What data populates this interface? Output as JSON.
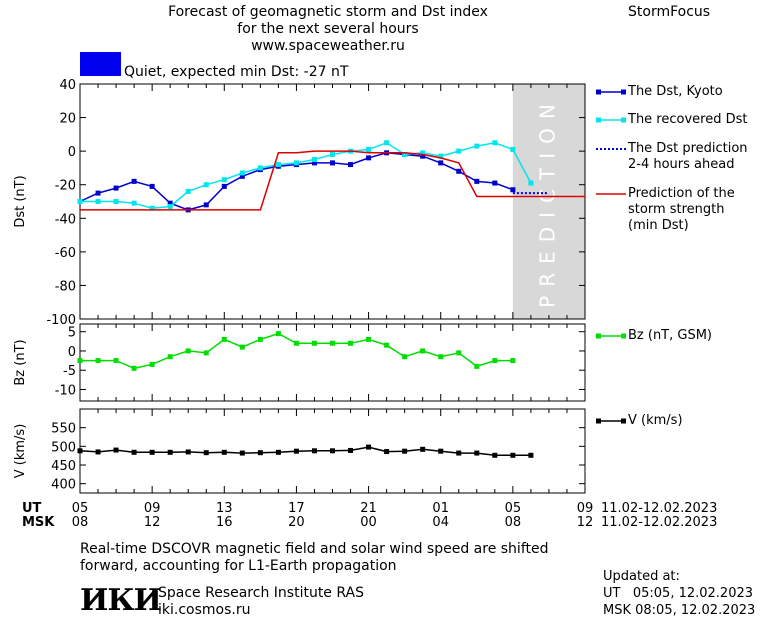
{
  "header": {
    "title_line1": "Forecast of geomagnetic storm and Dst index",
    "title_line2": "for the next several hours",
    "title_line3": "www.spaceweather.ru",
    "brand": "StormFocus",
    "status_text": "Quiet, expected min Dst: -27 nT",
    "status_color": "#0000ee"
  },
  "time_axis": {
    "ut_label": "UT",
    "msk_label": "MSK",
    "ut_ticks": [
      "05",
      "09",
      "13",
      "17",
      "21",
      "01",
      "05",
      "09"
    ],
    "msk_ticks": [
      "08",
      "12",
      "16",
      "20",
      "00",
      "04",
      "08",
      "12"
    ],
    "date_range_ut": "11.02-12.02.2023",
    "date_range_msk": "11.02-12.02.2023"
  },
  "chart_data": [
    {
      "type": "line",
      "ylabel": "Dst (nT)",
      "ylim": [
        -100,
        40
      ],
      "yticks": [
        "40",
        "20",
        "0",
        "-20",
        "-40",
        "-60",
        "-80",
        "-100"
      ],
      "prediction_label": "PREDICTION",
      "prediction_band_hours": [
        5,
        9
      ],
      "x_hours": [
        0,
        1,
        2,
        3,
        4,
        5,
        6,
        7,
        8,
        9,
        10,
        11,
        12,
        13,
        14,
        15,
        16,
        17,
        18,
        19,
        20,
        21,
        22,
        23,
        24,
        25
      ],
      "series": [
        {
          "name": "The Dst, Kyoto",
          "color": "#0000cc",
          "values": [
            -30,
            -25,
            -22,
            -18,
            -21,
            -31,
            -35,
            -32,
            -21,
            -15,
            -11,
            -9,
            -8,
            -7,
            -7,
            -8,
            -4,
            -1,
            -2,
            -3,
            -7,
            -12,
            -18,
            -19,
            -23,
            null
          ]
        },
        {
          "name": "The recovered Dst",
          "color": "#00e5ee",
          "values": [
            -30,
            -30,
            -30,
            -31,
            -34,
            -33,
            -24,
            -20,
            -17,
            -13,
            -10,
            -8,
            -7,
            -5,
            -2,
            0,
            1,
            5,
            -2,
            -1,
            -3,
            0,
            3,
            5,
            1,
            -19
          ]
        },
        {
          "name": "The Dst prediction\n2-4 hours ahead",
          "color": "#0000ee",
          "style": "dotted",
          "x": [
            24,
            25,
            26
          ],
          "values": [
            -25,
            -25,
            -25
          ]
        },
        {
          "name": "Prediction of the\nstorm strength\n(min Dst)",
          "color": "#dd0000",
          "x": [
            0,
            10,
            11,
            12,
            13,
            14,
            15,
            16,
            17,
            18,
            19,
            20,
            21,
            22,
            23,
            24,
            25,
            26,
            27,
            28
          ],
          "values": [
            -35,
            -35,
            -1,
            -1,
            0,
            0,
            0,
            -1,
            -1,
            -1,
            -2,
            -4,
            -7,
            -27,
            -27,
            -27,
            -27,
            -27,
            -27,
            -27
          ]
        }
      ]
    },
    {
      "type": "line",
      "ylabel": "Bz (nT)",
      "ylim": [
        -13,
        7
      ],
      "yticks": [
        "5",
        "0",
        "-5",
        "-10"
      ],
      "x_hours": [
        0,
        1,
        2,
        3,
        4,
        5,
        6,
        7,
        8,
        9,
        10,
        11,
        12,
        13,
        14,
        15,
        16,
        17,
        18,
        19,
        20,
        21,
        22,
        23,
        24,
        25
      ],
      "series": [
        {
          "name": "Bz (nT, GSM)",
          "color": "#00dd00",
          "values": [
            -2.5,
            -2.5,
            -2.5,
            -4.5,
            -3.5,
            -1.5,
            0,
            -0.5,
            3,
            1,
            3,
            4.5,
            2,
            2,
            2,
            2,
            3,
            1.5,
            -1.5,
            0,
            -1.5,
            -0.5,
            -4,
            -2.5,
            -2.5,
            null
          ]
        }
      ]
    },
    {
      "type": "line",
      "ylabel": "V (km/s)",
      "ylim": [
        375,
        600
      ],
      "yticks": [
        "550",
        "500",
        "450",
        "400"
      ],
      "x_hours": [
        0,
        1,
        2,
        3,
        4,
        5,
        6,
        7,
        8,
        9,
        10,
        11,
        12,
        13,
        14,
        15,
        16,
        17,
        18,
        19,
        20,
        21,
        22,
        23,
        24,
        25
      ],
      "series": [
        {
          "name": "V (km/s)",
          "color": "#000000",
          "values": [
            488,
            485,
            490,
            484,
            484,
            484,
            485,
            483,
            484,
            482,
            483,
            484,
            487,
            488,
            488,
            489,
            498,
            486,
            487,
            492,
            487,
            482,
            482,
            476,
            476,
            476
          ]
        }
      ]
    }
  ],
  "footer": {
    "note_line1": "Real-time DSCOVR magnetic field and solar wind speed are shifted",
    "note_line2": "forward, accounting for L1-Earth propagation",
    "logo_text": "ИКИ",
    "institute": "Space Research Institute RAS",
    "site": "iki.cosmos.ru",
    "updated_label": "Updated at:",
    "updated_ut": "UT   05:05, 12.02.2023",
    "updated_msk": "MSK 08:05, 12.02.2023"
  }
}
